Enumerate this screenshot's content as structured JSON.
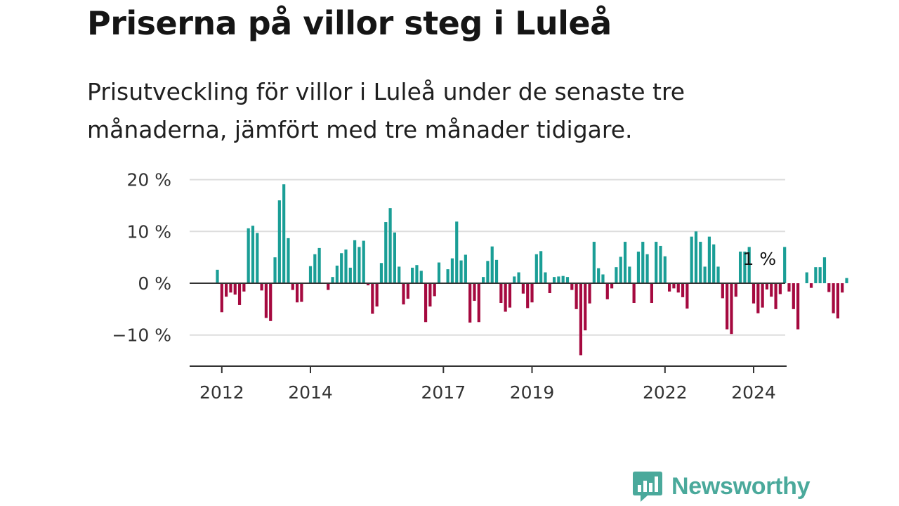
{
  "header": {
    "title": "Priserna på villor steg i Luleå",
    "subtitle": "Prisutveckling för villor i Luleå under de senaste tre månaderna, jämfört med tre månader tidigare."
  },
  "brand": {
    "name": "Newsworthy"
  },
  "colors": {
    "positive": "#1a9e96",
    "negative": "#a5093f",
    "grid": "#dddddd",
    "axis": "#333333",
    "brand": "#4aa99b"
  },
  "chart_data": {
    "type": "bar",
    "title": "Priserna på villor steg i Luleå",
    "xlabel": "",
    "ylabel": "",
    "ylim": [
      -16,
      22
    ],
    "yticks": [
      {
        "value": 20,
        "label": "20 %"
      },
      {
        "value": 10,
        "label": "10 %"
      },
      {
        "value": 0,
        "label": "0 %"
      },
      {
        "value": -10,
        "label": "−10 %"
      }
    ],
    "xticks": [
      {
        "index": 1,
        "label": "2012"
      },
      {
        "index": 21,
        "label": "2014"
      },
      {
        "index": 51,
        "label": "2017"
      },
      {
        "index": 71,
        "label": "2019"
      },
      {
        "index": 101,
        "label": "2022"
      },
      {
        "index": 121,
        "label": "2024"
      }
    ],
    "annotation": {
      "index": 122,
      "label": "1 %"
    },
    "values": [
      2.6,
      -5.6,
      -2.6,
      -1.8,
      -2.2,
      -4.2,
      -1.6,
      10.6,
      11.1,
      9.7,
      -1.4,
      -6.7,
      -7.3,
      5.0,
      16.0,
      19.1,
      8.7,
      -1.3,
      -3.7,
      -3.6,
      0,
      3.3,
      5.6,
      6.8,
      0,
      -1.3,
      1.2,
      3.4,
      5.8,
      6.5,
      3.0,
      8.3,
      7.0,
      8.2,
      -0.4,
      -5.9,
      -4.5,
      3.9,
      11.8,
      14.5,
      9.8,
      3.2,
      -4.1,
      -3.0,
      3.0,
      3.5,
      2.4,
      -7.5,
      -4.5,
      -2.5,
      4.0,
      0,
      2.7,
      4.8,
      11.9,
      4.4,
      5.5,
      -7.6,
      -3.4,
      -7.5,
      1.2,
      4.3,
      7.1,
      4.5,
      -3.8,
      -5.5,
      -4.7,
      1.3,
      2.1,
      -2.0,
      -4.8,
      -3.7,
      5.6,
      6.2,
      2.1,
      -1.9,
      1.2,
      1.3,
      1.4,
      1.2,
      -1.3,
      -5.0,
      -13.9,
      -9.1,
      -3.9,
      8.0,
      2.9,
      1.7,
      -3.1,
      -1.0,
      3.1,
      5.1,
      8.0,
      3.2,
      -3.8,
      6.1,
      8.0,
      5.6,
      -3.8,
      8.0,
      7.2,
      5.2,
      -1.6,
      -1.0,
      -1.8,
      -2.7,
      -4.9,
      9.0,
      10.0,
      8.0,
      3.2,
      9.0,
      7.5,
      3.2,
      -2.9,
      -8.9,
      -9.8,
      -2.6,
      6.1,
      6.1,
      7.0,
      -3.9,
      -5.8,
      -4.7,
      -1.2,
      -2.6,
      -5.0,
      -2.1,
      7.0,
      -1.6,
      -5.0,
      -8.9,
      0,
      2.1,
      -0.9,
      3.1,
      3.1,
      5.0,
      -1.7,
      -5.8,
      -6.8,
      -1.8,
      1.0
    ]
  }
}
